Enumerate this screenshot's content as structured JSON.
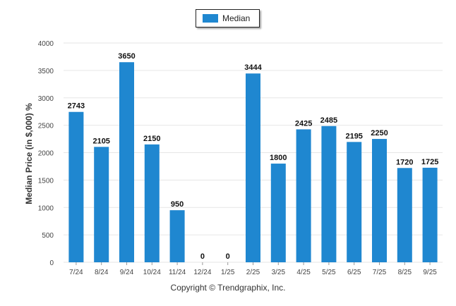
{
  "chart_data": {
    "type": "bar",
    "categories": [
      "7/24",
      "8/24",
      "9/24",
      "10/24",
      "11/24",
      "12/24",
      "1/25",
      "2/25",
      "3/25",
      "4/25",
      "5/25",
      "6/25",
      "7/25",
      "8/25",
      "9/25"
    ],
    "series": [
      {
        "name": "Median",
        "values": [
          2743,
          2105,
          3650,
          2150,
          950,
          0,
          0,
          3444,
          1800,
          2425,
          2485,
          2195,
          2250,
          1720,
          1725
        ]
      }
    ],
    "data_labels": [
      "2743",
      "2105",
      "3650",
      "2150",
      "950",
      "0",
      "0",
      "3444",
      "1800",
      "2425",
      "2485",
      "2195",
      "2250",
      "1720",
      "1725"
    ],
    "title": "",
    "xlabel": "",
    "ylabel": "Median Price (in $,000) %",
    "ylim": [
      0,
      4000
    ],
    "yticks": [
      "0",
      "500",
      "1000",
      "1500",
      "2000",
      "2500",
      "3000",
      "3500",
      "4000"
    ],
    "grid": true,
    "legend_position": "top-center",
    "bar_color": "#1f87d0",
    "grid_color": "#e6e6e6"
  },
  "credit": "Copyright © Trendgraphix, Inc."
}
